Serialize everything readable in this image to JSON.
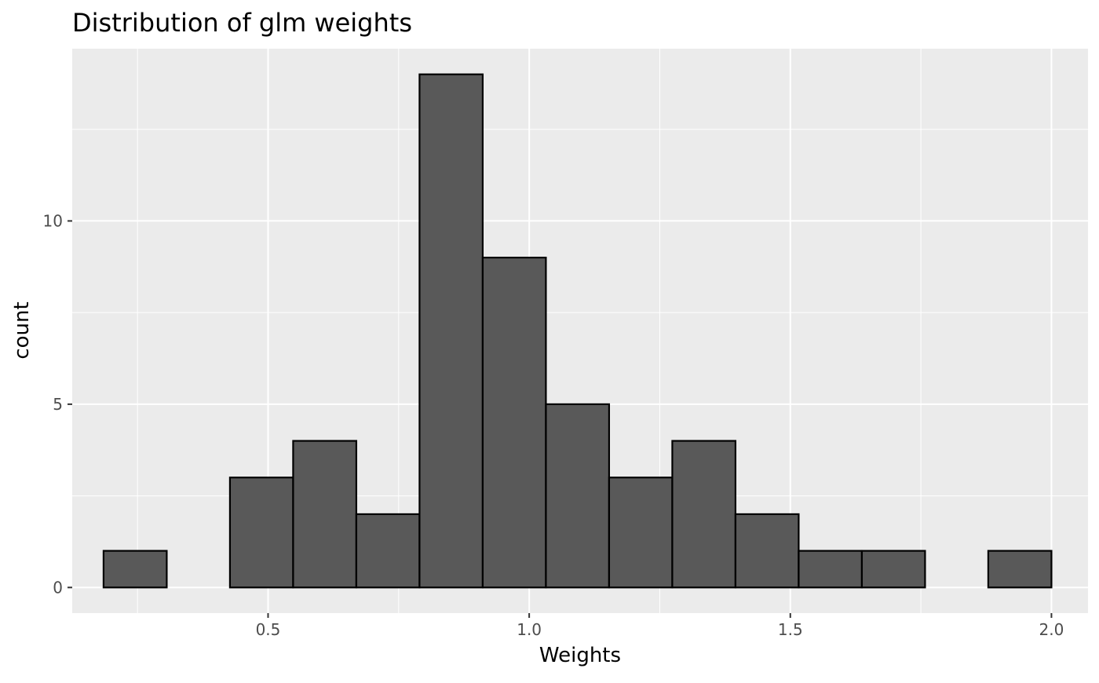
{
  "chart_data": {
    "type": "bar",
    "title": "Distribution of glm weights",
    "xlabel": "Weights",
    "ylabel": "count",
    "x_ticks": [
      "0.5",
      "1.0",
      "1.5",
      "2.0"
    ],
    "x_tick_values": [
      0.5,
      1.0,
      1.5,
      2.0
    ],
    "y_ticks": [
      "0",
      "5",
      "10"
    ],
    "y_tick_values": [
      0,
      5,
      10
    ],
    "xlim": [
      0.125,
      2.07
    ],
    "ylim": [
      -0.7,
      14.7
    ],
    "bins": [
      {
        "start": 0.185,
        "end": 0.306,
        "count": 1
      },
      {
        "start": 0.306,
        "end": 0.427,
        "count": 0
      },
      {
        "start": 0.427,
        "end": 0.548,
        "count": 3
      },
      {
        "start": 0.548,
        "end": 0.669,
        "count": 4
      },
      {
        "start": 0.669,
        "end": 0.79,
        "count": 2
      },
      {
        "start": 0.79,
        "end": 0.911,
        "count": 14
      },
      {
        "start": 0.911,
        "end": 1.032,
        "count": 9
      },
      {
        "start": 1.032,
        "end": 1.153,
        "count": 5
      },
      {
        "start": 1.153,
        "end": 1.274,
        "count": 3
      },
      {
        "start": 1.274,
        "end": 1.395,
        "count": 4
      },
      {
        "start": 1.395,
        "end": 1.516,
        "count": 2
      },
      {
        "start": 1.516,
        "end": 1.637,
        "count": 1
      },
      {
        "start": 1.637,
        "end": 1.758,
        "count": 1
      },
      {
        "start": 1.758,
        "end": 1.879,
        "count": 0
      },
      {
        "start": 1.879,
        "end": 2.0,
        "count": 1
      }
    ],
    "bar_fill": "#595959",
    "bar_stroke": "#000000",
    "panel_background": "#ebebeb",
    "grid_color": "#ffffff",
    "grid": true,
    "legend": "none"
  }
}
